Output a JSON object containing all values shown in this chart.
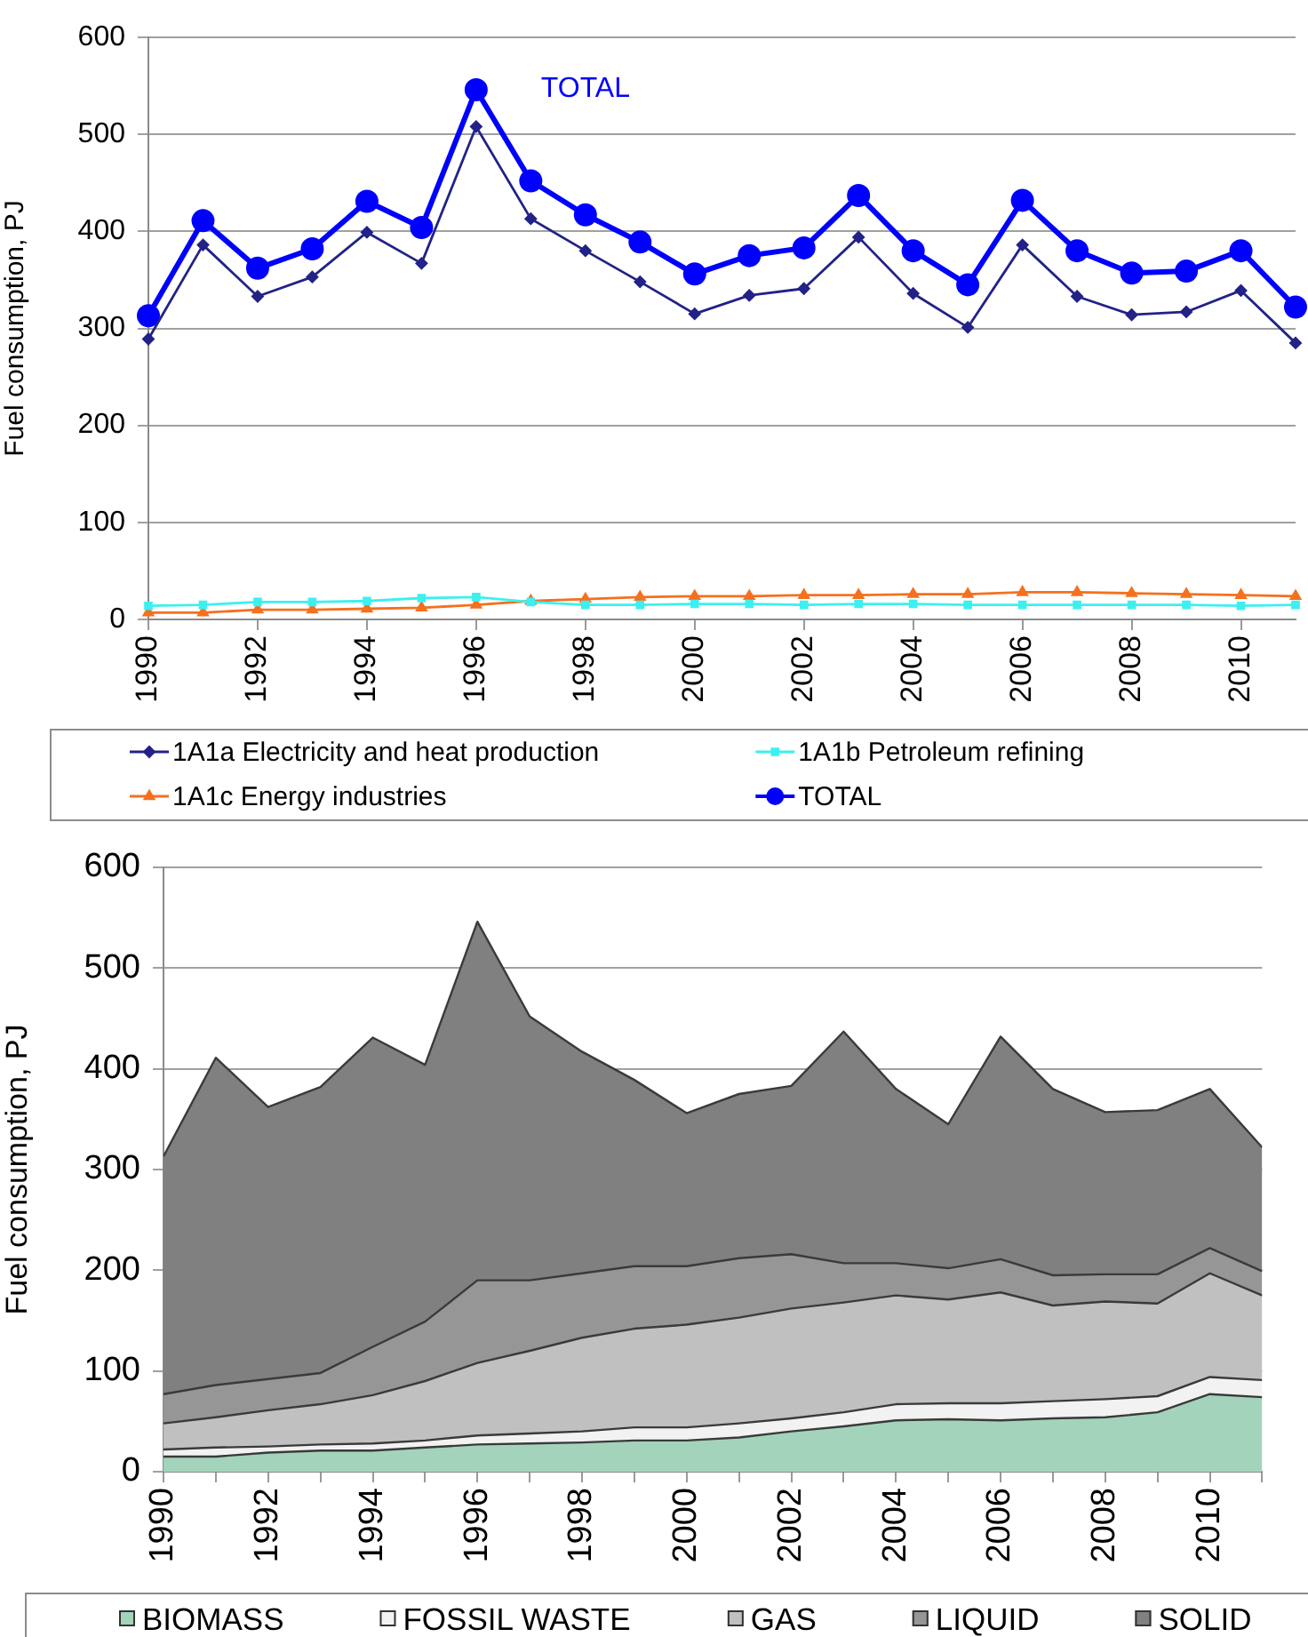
{
  "chart_data": [
    {
      "type": "line",
      "ylabel": "Fuel consumption, PJ",
      "x": [
        1990,
        1991,
        1992,
        1993,
        1994,
        1995,
        1996,
        1997,
        1998,
        1999,
        2000,
        2001,
        2002,
        2003,
        2004,
        2005,
        2006,
        2007,
        2008,
        2009,
        2010,
        2011
      ],
      "xlim": [
        1990,
        2011
      ],
      "xticks": [
        1990,
        1992,
        1994,
        1996,
        1998,
        2000,
        2002,
        2004,
        2006,
        2008,
        2010
      ],
      "ylim": [
        0,
        600
      ],
      "yticks": [
        0,
        100,
        200,
        300,
        400,
        500,
        600
      ],
      "grid": "y",
      "legend": "bottom",
      "annotations": [
        "TOTAL"
      ],
      "series": [
        {
          "name": "1A1a Electricity and heat production",
          "color": "#222288",
          "marker": "diamond",
          "values": [
            289,
            386,
            333,
            353,
            399,
            367,
            508,
            413,
            380,
            348,
            315,
            334,
            341,
            394,
            336,
            301,
            386,
            333,
            314,
            317,
            339,
            285
          ]
        },
        {
          "name": "1A1b Petroleum refining",
          "color": "#3cf0f0",
          "marker": "square",
          "values": [
            14,
            15,
            18,
            18,
            19,
            22,
            23,
            18,
            15,
            15,
            16,
            16,
            15,
            16,
            16,
            15,
            15,
            15,
            15,
            15,
            14,
            15
          ]
        },
        {
          "name": "1A1c Energy industries",
          "color": "#f5701e",
          "marker": "triangle",
          "values": [
            7,
            7,
            10,
            10,
            11,
            12,
            15,
            19,
            21,
            23,
            24,
            24,
            25,
            25,
            26,
            26,
            28,
            28,
            27,
            26,
            25,
            24
          ]
        },
        {
          "name": "TOTAL",
          "color": "#0000ff",
          "marker": "circle",
          "values": [
            313,
            411,
            362,
            382,
            431,
            404,
            546,
            452,
            417,
            389,
            356,
            375,
            383,
            437,
            380,
            345,
            432,
            380,
            357,
            359,
            380,
            322
          ]
        }
      ]
    },
    {
      "type": "area",
      "stacked": true,
      "ylabel": "Fuel consumption, PJ",
      "x": [
        1990,
        1991,
        1992,
        1993,
        1994,
        1995,
        1996,
        1997,
        1998,
        1999,
        2000,
        2001,
        2002,
        2003,
        2004,
        2005,
        2006,
        2007,
        2008,
        2009,
        2010,
        2011
      ],
      "xlim": [
        1990,
        2011
      ],
      "xticks": [
        1990,
        {
          "value": 1991,
          "label": null
        },
        1992,
        {
          "value": 1993,
          "label": null
        },
        1994,
        {
          "value": 1995,
          "label": null
        },
        1996,
        {
          "value": 1997,
          "label": null
        },
        1998,
        {
          "value": 1999,
          "label": null
        },
        2000,
        {
          "value": 2001,
          "label": null
        },
        2002,
        {
          "value": 2003,
          "label": null
        },
        2004,
        {
          "value": 2005,
          "label": null
        },
        2006,
        {
          "value": 2007,
          "label": null
        },
        2008,
        {
          "value": 2009,
          "label": null
        },
        2010,
        {
          "value": 2011,
          "label": null
        }
      ],
      "ylim": [
        0,
        600
      ],
      "yticks": [
        0,
        100,
        200,
        300,
        400,
        500,
        600
      ],
      "grid": "y",
      "legend": "bottom",
      "series": [
        {
          "name": "BIOMASS",
          "color": "#a3d4bb",
          "values": [
            15,
            15,
            19,
            21,
            21,
            24,
            27,
            28,
            29,
            31,
            31,
            34,
            40,
            45,
            51,
            52,
            51,
            53,
            54,
            59,
            77,
            74
          ]
        },
        {
          "name": "FOSSIL WASTE",
          "color": "#f2f2f2",
          "values": [
            7,
            9,
            6,
            6,
            7,
            7,
            9,
            10,
            11,
            13,
            13,
            14,
            13,
            14,
            16,
            16,
            17,
            17,
            18,
            16,
            17,
            17
          ]
        },
        {
          "name": "GAS",
          "color": "#c0c0c0",
          "values": [
            26,
            30,
            36,
            40,
            48,
            59,
            72,
            82,
            93,
            98,
            102,
            105,
            109,
            109,
            108,
            103,
            110,
            95,
            97,
            92,
            103,
            84
          ]
        },
        {
          "name": "LIQUID",
          "color": "#969696",
          "values": [
            29,
            32,
            31,
            31,
            48,
            59,
            82,
            70,
            64,
            62,
            58,
            59,
            54,
            39,
            32,
            31,
            33,
            30,
            27,
            29,
            25,
            24
          ]
        },
        {
          "name": "SOLID",
          "color": "#808080",
          "values": [
            236,
            325,
            270,
            284,
            307,
            255,
            356,
            262,
            220,
            185,
            152,
            163,
            167,
            230,
            173,
            143,
            221,
            185,
            161,
            163,
            158,
            123
          ]
        }
      ]
    }
  ]
}
